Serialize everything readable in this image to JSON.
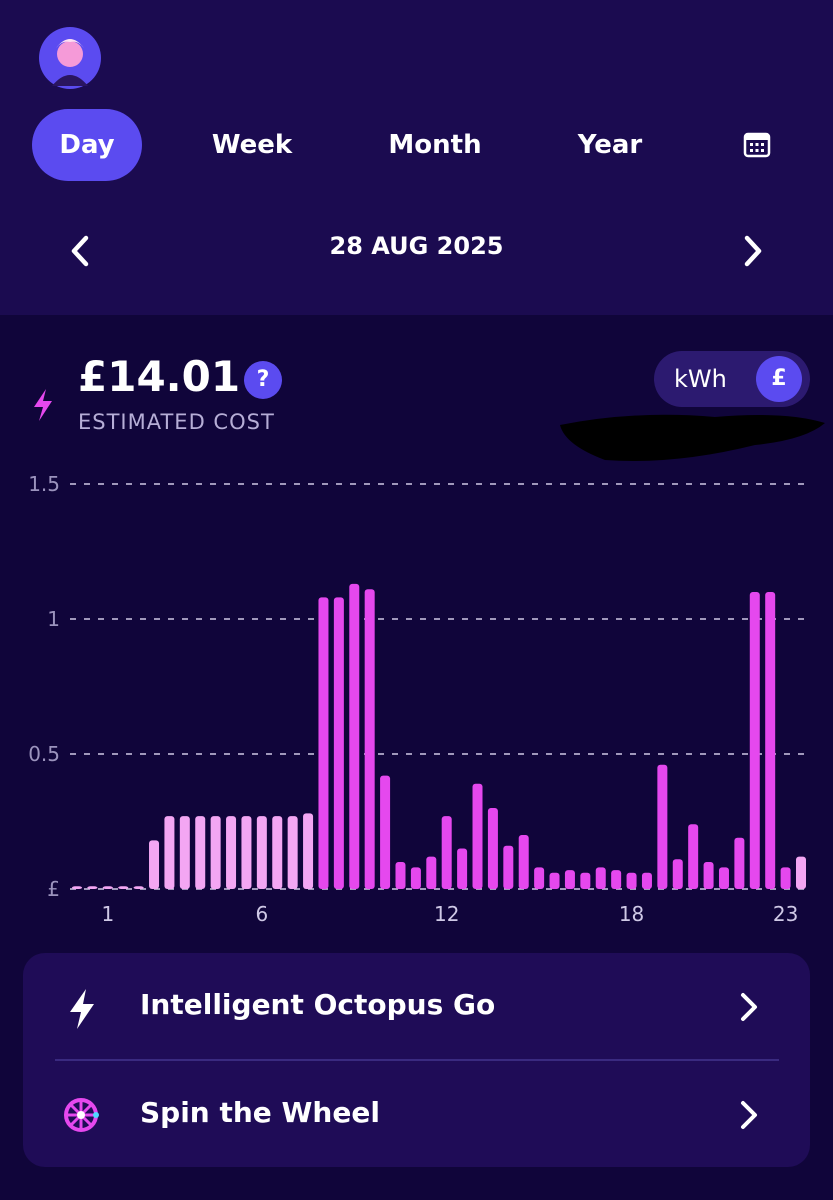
{
  "tabs": [
    "Day",
    "Week",
    "Month",
    "Year"
  ],
  "date": "28 AUG 2025",
  "cost": {
    "amount": "£14.01",
    "help": "?",
    "label": "ESTIMATED COST"
  },
  "unit_toggle": [
    "kWh",
    "£"
  ],
  "chart_data": {
    "type": "bar",
    "categories": [
      null,
      null,
      "1",
      null,
      null,
      null,
      null,
      null,
      null,
      null,
      null,
      null,
      "6",
      null,
      null,
      null,
      null,
      null,
      null,
      null,
      null,
      null,
      null,
      null,
      "12",
      null,
      null,
      null,
      null,
      null,
      null,
      null,
      null,
      null,
      null,
      null,
      "18",
      null,
      null,
      null,
      null,
      null,
      null,
      null,
      null,
      null,
      "23",
      null
    ],
    "values": [
      0.01,
      0.01,
      0.01,
      0.01,
      0.01,
      0.18,
      0.27,
      0.27,
      0.27,
      0.27,
      0.27,
      0.27,
      0.27,
      0.27,
      0.27,
      0.28,
      1.08,
      1.08,
      1.13,
      1.11,
      0.42,
      0.1,
      0.08,
      0.12,
      0.27,
      0.15,
      0.39,
      0.3,
      0.16,
      0.2,
      0.08,
      0.06,
      0.07,
      0.06,
      0.08,
      0.07,
      0.06,
      0.06,
      0.46,
      0.11,
      0.24,
      0.1,
      0.08,
      0.19,
      1.1,
      1.1,
      0.08,
      0.12
    ],
    "colors": [
      "#f3a6f3",
      "#f3a6f3",
      "#f3a6f3",
      "#f3a6f3",
      "#f3a6f3",
      "#f3a6f3",
      "#f3a6f3",
      "#f3a6f3",
      "#f3a6f3",
      "#f3a6f3",
      "#f3a6f3",
      "#f3a6f3",
      "#f3a6f3",
      "#f3a6f3",
      "#f3a6f3",
      "#f3a6f3",
      "#e548ee",
      "#e548ee",
      "#e548ee",
      "#e548ee",
      "#e548ee",
      "#e548ee",
      "#e548ee",
      "#e548ee",
      "#e548ee",
      "#e548ee",
      "#e548ee",
      "#e548ee",
      "#e548ee",
      "#e548ee",
      "#e548ee",
      "#e548ee",
      "#e548ee",
      "#e548ee",
      "#e548ee",
      "#e548ee",
      "#e548ee",
      "#e548ee",
      "#e548ee",
      "#e548ee",
      "#e548ee",
      "#e548ee",
      "#e548ee",
      "#e548ee",
      "#e548ee",
      "#e548ee",
      "#e548ee",
      "#f3a6f3"
    ],
    "ylim": [
      0,
      1.5
    ],
    "yticks": [
      {
        "value": 0,
        "label": "£"
      },
      0.5,
      1,
      1.5
    ],
    "grid": true
  },
  "links": [
    "Intelligent Octopus Go",
    "Spin the Wheel"
  ]
}
